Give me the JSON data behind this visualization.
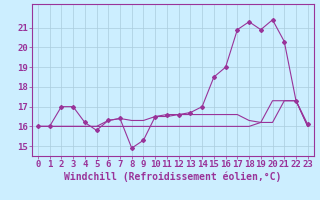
{
  "background_color": "#cceeff",
  "plot_bg_color": "#cceeff",
  "grid_color": "#aaccdd",
  "line_color": "#993399",
  "xlabel": "Windchill (Refroidissement éolien,°C)",
  "xlim": [
    -0.5,
    23.5
  ],
  "ylim": [
    14.5,
    22.2
  ],
  "xticks": [
    0,
    1,
    2,
    3,
    4,
    5,
    6,
    7,
    8,
    9,
    10,
    11,
    12,
    13,
    14,
    15,
    16,
    17,
    18,
    19,
    20,
    21,
    22,
    23
  ],
  "yticks": [
    15,
    16,
    17,
    18,
    19,
    20,
    21
  ],
  "series1_x": [
    0,
    1,
    2,
    3,
    4,
    5,
    6,
    7,
    8,
    9,
    10,
    11,
    12,
    13,
    14,
    15,
    16,
    17,
    18,
    19,
    20,
    21,
    22,
    23
  ],
  "series1_y": [
    16.0,
    16.0,
    17.0,
    17.0,
    16.2,
    15.8,
    16.3,
    16.4,
    14.9,
    15.3,
    16.5,
    16.6,
    16.6,
    16.7,
    17.0,
    18.5,
    19.0,
    20.9,
    21.3,
    20.9,
    21.4,
    20.3,
    17.3,
    16.1
  ],
  "series2_x": [
    0,
    1,
    2,
    3,
    4,
    5,
    6,
    7,
    8,
    9,
    10,
    11,
    12,
    13,
    14,
    15,
    16,
    17,
    18,
    19,
    20,
    21,
    22,
    23
  ],
  "series2_y": [
    16.0,
    16.0,
    16.0,
    16.0,
    16.0,
    16.0,
    16.3,
    16.4,
    16.3,
    16.3,
    16.5,
    16.5,
    16.6,
    16.6,
    16.6,
    16.6,
    16.6,
    16.6,
    16.3,
    16.2,
    17.3,
    17.3,
    17.3,
    16.0
  ],
  "series3_x": [
    0,
    1,
    2,
    3,
    4,
    5,
    6,
    7,
    8,
    9,
    10,
    11,
    12,
    13,
    14,
    15,
    16,
    17,
    18,
    19,
    20,
    21,
    22,
    23
  ],
  "series3_y": [
    16.0,
    16.0,
    16.0,
    16.0,
    16.0,
    16.0,
    16.0,
    16.0,
    16.0,
    16.0,
    16.0,
    16.0,
    16.0,
    16.0,
    16.0,
    16.0,
    16.0,
    16.0,
    16.0,
    16.2,
    16.2,
    17.3,
    17.3,
    16.0
  ],
  "fontsize_label": 7,
  "fontsize_tick": 6.5
}
